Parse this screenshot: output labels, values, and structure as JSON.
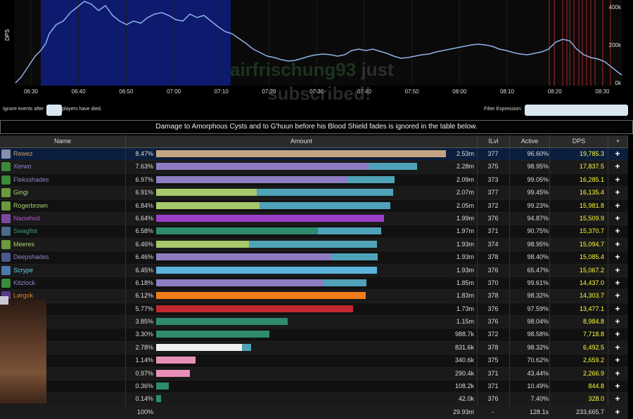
{
  "graph": {
    "y_label": "DPS",
    "y_ticks": [
      "400k",
      "200k",
      "0k"
    ],
    "x_ticks": [
      "06:30",
      "06:40",
      "06:50",
      "07:00",
      "07:10",
      "07:20",
      "07:30",
      "07:40",
      "07:50",
      "08:00",
      "08:10",
      "08:20",
      "08:30"
    ],
    "line_color": "#8fb3e8",
    "highlight_color": "#0d1a6e",
    "death_marker_color": "#aa2222"
  },
  "overlay": {
    "line1_a": "airfrischung93",
    "line1_b": "just",
    "line2": "subscribed!"
  },
  "filter": {
    "ignore_before": "Ignore events after",
    "ignore_after": "players have died.",
    "ignore_value": "",
    "expression_label": "Filter Expression:",
    "expression_value": ""
  },
  "notice": "Damage to Amorphous Cysts and to G'huun before his Blood Shield fades is ignored in the table below.",
  "columns": {
    "name": "Name",
    "amount": "Amount",
    "ilvl": "ILvl",
    "active": "Active",
    "dps": "DPS",
    "plus": "+"
  },
  "rows": [
    {
      "name": "Rewez",
      "color": "#c79c6e",
      "pct": "8.47%",
      "amount": "2.53m",
      "ilvl": "377",
      "active": "96.60%",
      "dps": "19,785.3",
      "bar1": 1.0,
      "bar2": 0,
      "c1": "#c4a582",
      "c2": "#c4a582",
      "icon": "#8a8fb0"
    },
    {
      "name": "Xerwo",
      "color": "#9482c9",
      "pct": "7.63%",
      "amount": "2.28m",
      "ilvl": "375",
      "active": "98.95%",
      "dps": "17,837.5",
      "bar1": 0.733,
      "bar2": 0.168,
      "c1": "#8e7cc3",
      "c2": "#4fa3b8",
      "icon": "#3a8a3a"
    },
    {
      "name": "Fleksshades",
      "color": "#9482c9",
      "pct": "6.97%",
      "amount": "2.09m",
      "ilvl": "373",
      "active": "99.05%",
      "dps": "16,285.1",
      "bar1": 0.66,
      "bar2": 0.163,
      "c1": "#8e7cc3",
      "c2": "#4fa3b8",
      "icon": "#3a8a3a"
    },
    {
      "name": "Gingi",
      "color": "#abd473",
      "pct": "6.91%",
      "amount": "2.07m",
      "ilvl": "377",
      "active": "99.45%",
      "dps": "16,135.4",
      "bar1": 0.347,
      "bar2": 0.47,
      "c1": "#a5c86a",
      "c2": "#4fa3b8",
      "icon": "#6a9a3a"
    },
    {
      "name": "Rogerbrown",
      "color": "#abd473",
      "pct": "6.84%",
      "amount": "2.05m",
      "ilvl": "372",
      "active": "99.23%",
      "dps": "15,981.8",
      "bar1": 0.356,
      "bar2": 0.452,
      "c1": "#a5c86a",
      "c2": "#4fa3b8",
      "icon": "#6a9a3a"
    },
    {
      "name": "Naowhxd",
      "color": "#b35ac4",
      "pct": "6.64%",
      "amount": "1.99m",
      "ilvl": "376",
      "active": "94.87%",
      "dps": "15,509.9",
      "bar1": 0.786,
      "bar2": 0,
      "c1": "#9b3fc8",
      "c2": "#9b3fc8",
      "icon": "#7a4aa0"
    },
    {
      "name": "Swagfist",
      "color": "#3a9a78",
      "pct": "6.58%",
      "amount": "1.97m",
      "ilvl": "371",
      "active": "90.75%",
      "dps": "15,370.7",
      "bar1": 0.558,
      "bar2": 0.218,
      "c1": "#2e8b6e",
      "c2": "#4fa3b8",
      "icon": "#4a6a8a"
    },
    {
      "name": "Meeres",
      "color": "#abd473",
      "pct": "6.46%",
      "amount": "1.93m",
      "ilvl": "374",
      "active": "98.95%",
      "dps": "15,094.7",
      "bar1": 0.32,
      "bar2": 0.442,
      "c1": "#a5c86a",
      "c2": "#4fa3b8",
      "icon": "#6a9a3a"
    },
    {
      "name": "Deepshades",
      "color": "#9482c9",
      "pct": "6.46%",
      "amount": "1.93m",
      "ilvl": "378",
      "active": "98.40%",
      "dps": "15,085.4",
      "bar1": 0.604,
      "bar2": 0.16,
      "c1": "#8e7cc3",
      "c2": "#4fa3b8",
      "icon": "#4a5a8a"
    },
    {
      "name": "Scrype",
      "color": "#69ccf0",
      "pct": "6.45%",
      "amount": "1.93m",
      "ilvl": "376",
      "active": "65.47%",
      "dps": "15,067.2",
      "bar1": 0.762,
      "bar2": 0,
      "c1": "#5ab4dc",
      "c2": "#5ab4dc",
      "icon": "#4a7ab0"
    },
    {
      "name": "Kitzlock",
      "color": "#9482c9",
      "pct": "6.18%",
      "amount": "1.85m",
      "ilvl": "370",
      "active": "99.61%",
      "dps": "14,437.0",
      "bar1": 0.575,
      "bar2": 0.15,
      "c1": "#8e7cc3",
      "c2": "#4fa3b8",
      "icon": "#3a8a3a"
    },
    {
      "name": "Lørgok",
      "color": "#ff7d0a",
      "pct": "6.12%",
      "amount": "1.83m",
      "ilvl": "378",
      "active": "98.32%",
      "dps": "14,303.7",
      "bar1": 0.723,
      "bar2": 0,
      "c1": "#f07c1a",
      "c2": "#f07c1a",
      "icon": "#5a3a8a"
    },
    {
      "name": "",
      "color": "#c41f3b",
      "pct": "5.77%",
      "amount": "1.73m",
      "ilvl": "376",
      "active": "97.59%",
      "dps": "13,477.1",
      "bar1": 0.68,
      "bar2": 0,
      "c1": "#c0292f",
      "c2": "#c0292f",
      "icon": "#5a5a5a"
    },
    {
      "name": "",
      "color": "#3a9a78",
      "pct": "3.85%",
      "amount": "1.15m",
      "ilvl": "376",
      "active": "98.04%",
      "dps": "8,984.8",
      "bar1": 0.454,
      "bar2": 0,
      "c1": "#2e8b6e",
      "c2": "#2e8b6e",
      "icon": "#5a5a5a"
    },
    {
      "name": "",
      "color": "#3a9a78",
      "pct": "3.30%",
      "amount": "988.7k",
      "ilvl": "372",
      "active": "98.58%",
      "dps": "7,718.8",
      "bar1": 0.39,
      "bar2": 0,
      "c1": "#2e8b6e",
      "c2": "#2e8b6e",
      "icon": "#5a5a5a"
    },
    {
      "name": "",
      "color": "#eeeeee",
      "pct": "2.78%",
      "amount": "831.6k",
      "ilvl": "378",
      "active": "98.32%",
      "dps": "6,492.5",
      "bar1": 0.296,
      "bar2": 0.032,
      "c1": "#f0f0f0",
      "c2": "#4fa3b8",
      "icon": "#5a5a5a"
    },
    {
      "name": "",
      "color": "#f58cba",
      "pct": "1.14%",
      "amount": "340.6k",
      "ilvl": "375",
      "active": "70.62%",
      "dps": "2,659.2",
      "bar1": 0.136,
      "bar2": 0,
      "c1": "#e890b8",
      "c2": "#e890b8",
      "icon": "#5a5a5a"
    },
    {
      "name": "",
      "color": "#f58cba",
      "pct": "0.97%",
      "amount": "290.4k",
      "ilvl": "371",
      "active": "43.44%",
      "dps": "2,266.9",
      "bar1": 0.116,
      "bar2": 0,
      "c1": "#e890b8",
      "c2": "#e890b8",
      "icon": "#5a5a5a"
    },
    {
      "name": "",
      "color": "#3a9a78",
      "pct": "0.36%",
      "amount": "108.2k",
      "ilvl": "371",
      "active": "10.49%",
      "dps": "844.8",
      "bar1": 0.044,
      "bar2": 0,
      "c1": "#2e8b6e",
      "c2": "#2e8b6e",
      "icon": "#5a5a5a"
    },
    {
      "name": "",
      "color": "#3a9a78",
      "pct": "0.14%",
      "amount": "42.0k",
      "ilvl": "376",
      "active": "7.40%",
      "dps": "328.0",
      "bar1": 0.018,
      "bar2": 0,
      "c1": "#2e8b6e",
      "c2": "#2e8b6e",
      "icon": "#5a5a5a"
    }
  ],
  "total": {
    "pct": "100%",
    "amount": "29.93m",
    "ilvl": "-",
    "active": "128.1s",
    "dps": "233,665.7"
  }
}
